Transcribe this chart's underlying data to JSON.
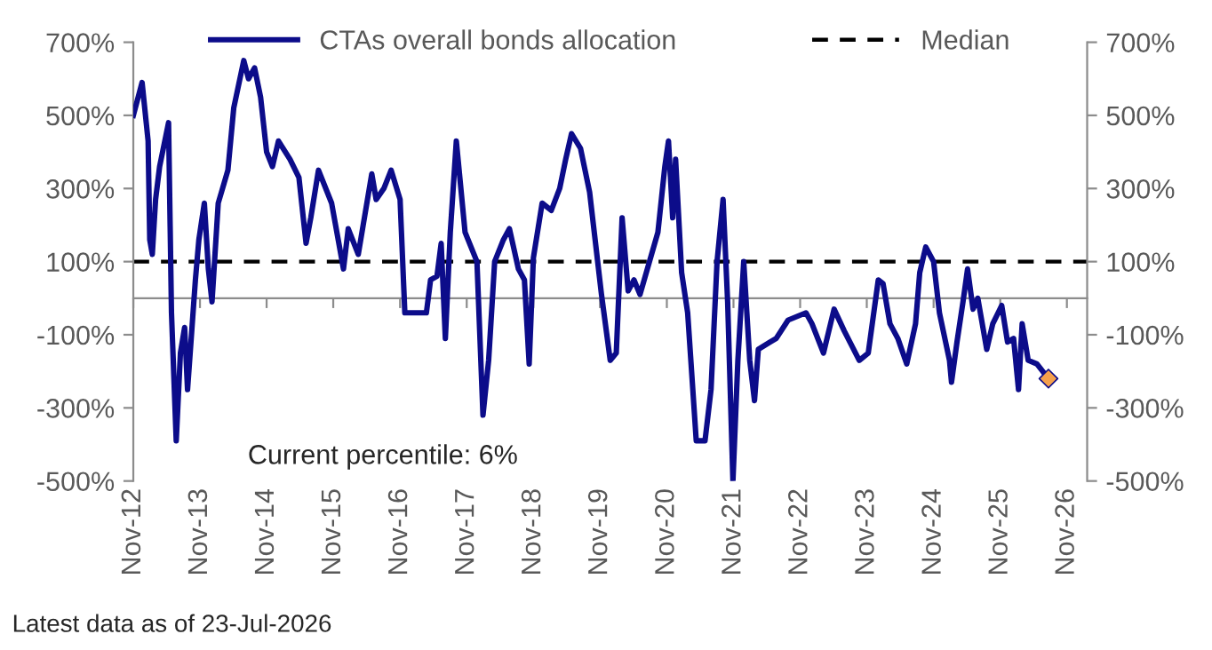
{
  "chart_data": {
    "type": "line",
    "x": [
      "2012-11-01",
      "2012-12-19",
      "2013-01-21",
      "2013-01-30",
      "2013-02-13",
      "2013-03-03",
      "2013-03-25",
      "2013-05-13",
      "2013-05-29",
      "2013-06-24",
      "2013-07-17",
      "2013-08-09",
      "2013-08-25",
      "2013-10-07",
      "2013-10-26",
      "2013-11-25",
      "2013-12-17",
      "2014-01-06",
      "2014-02-09",
      "2014-04-03",
      "2014-05-05",
      "2014-06-29",
      "2014-07-25",
      "2014-08-27",
      "2014-09-29",
      "2014-11-01",
      "2014-12-03",
      "2015-01-05",
      "2015-03-09",
      "2015-04-27",
      "2015-06-05",
      "2015-07-01",
      "2015-08-12",
      "2015-10-23",
      "2015-12-27",
      "2016-01-22",
      "2016-03-17",
      "2016-05-30",
      "2016-06-23",
      "2016-08-04",
      "2016-09-13",
      "2016-11-01",
      "2016-11-27",
      "2017-01-21",
      "2017-03-25",
      "2017-04-17",
      "2017-05-22",
      "2017-06-14",
      "2017-07-07",
      "2017-08-03",
      "2017-09-05",
      "2017-10-23",
      "2017-12-27",
      "2018-01-29",
      "2018-03-01",
      "2018-04-03",
      "2018-05-21",
      "2018-06-23",
      "2018-08-11",
      "2018-09-13",
      "2018-10-09",
      "2018-11-01",
      "2018-12-19",
      "2019-02-07",
      "2019-03-25",
      "2019-04-27",
      "2019-05-29",
      "2019-07-17",
      "2019-09-05",
      "2019-11-09",
      "2019-12-27",
      "2020-01-29",
      "2020-03-01",
      "2020-04-03",
      "2020-05-05",
      "2020-06-07",
      "2020-09-13",
      "2020-10-21",
      "2020-11-10",
      "2020-12-03",
      "2020-12-19",
      "2021-01-21",
      "2021-02-23",
      "2021-04-11",
      "2021-05-29",
      "2021-07-01",
      "2021-08-03",
      "2021-09-05",
      "2021-09-30",
      "2021-10-29",
      "2021-11-25",
      "2021-12-27",
      "2022-01-29",
      "2022-02-24",
      "2022-03-17",
      "2022-05-21",
      "2022-06-23",
      "2022-08-27",
      "2022-12-03",
      "2023-01-05",
      "2023-03-09",
      "2023-05-06",
      "2023-07-01",
      "2023-09-21",
      "2023-11-09",
      "2024-01-03",
      "2024-01-29",
      "2024-03-07",
      "2024-04-19",
      "2024-06-07",
      "2024-07-25",
      "2024-08-17",
      "2024-09-19",
      "2024-11-01",
      "2024-12-03",
      "2025-01-27",
      "2025-02-07",
      "2025-03-09",
      "2025-04-11",
      "2025-05-06",
      "2025-06-05",
      "2025-07-01",
      "2025-08-19",
      "2025-09-21",
      "2025-11-09",
      "2025-12-11",
      "2026-01-13",
      "2026-02-09",
      "2026-03-01",
      "2026-04-03",
      "2026-05-21",
      "2026-07-23"
    ],
    "series": [
      {
        "name": "CTAs overall bonds allocation",
        "color": "#0c0c8a",
        "marker": "none",
        "values": [
          500,
          590,
          430,
          160,
          120,
          270,
          360,
          480,
          -40,
          -390,
          -150,
          -80,
          -250,
          50,
          160,
          260,
          80,
          -10,
          260,
          350,
          520,
          650,
          600,
          630,
          550,
          400,
          360,
          430,
          380,
          330,
          150,
          220,
          350,
          260,
          80,
          190,
          120,
          340,
          270,
          300,
          350,
          270,
          -40,
          -40,
          -40,
          50,
          60,
          150,
          -110,
          180,
          430,
          180,
          100,
          -320,
          -170,
          100,
          160,
          190,
          80,
          50,
          -180,
          110,
          260,
          240,
          300,
          380,
          450,
          410,
          290,
          10,
          -170,
          -150,
          220,
          20,
          50,
          10,
          180,
          360,
          430,
          220,
          380,
          70,
          -40,
          -390,
          -390,
          -250,
          100,
          270,
          -10,
          -500,
          -170,
          100,
          -170,
          -280,
          -140,
          -120,
          -110,
          -60,
          -40,
          -70,
          -150,
          -30,
          -90,
          -170,
          -150,
          50,
          40,
          -70,
          -110,
          -180,
          -70,
          70,
          140,
          100,
          -40,
          -170,
          -230,
          -120,
          -10,
          80,
          -30,
          0,
          -140,
          -70,
          -20,
          -120,
          -110,
          -250,
          -70,
          -170,
          -180,
          -220
        ]
      },
      {
        "type": "scatter",
        "color": "#f4a04c",
        "marker": "diamond",
        "x": [
          "2026-07-23"
        ],
        "values": [
          -220
        ]
      }
    ],
    "xlim": [
      "2012-11-01",
      "2027-02-20"
    ],
    "xticks": [
      {
        "value": "2012-11-01",
        "label": "Nov-12"
      },
      {
        "value": "2013-11-01",
        "label": "Nov-13"
      },
      {
        "value": "2014-11-01",
        "label": "Nov-14"
      },
      {
        "value": "2015-11-01",
        "label": "Nov-15"
      },
      {
        "value": "2016-11-01",
        "label": "Nov-16"
      },
      {
        "value": "2017-11-01",
        "label": "Nov-17"
      },
      {
        "value": "2018-11-01",
        "label": "Nov-18"
      },
      {
        "value": "2019-11-01",
        "label": "Nov-19"
      },
      {
        "value": "2020-11-01",
        "label": "Nov-20"
      },
      {
        "value": "2021-11-01",
        "label": "Nov-21"
      },
      {
        "value": "2022-11-01",
        "label": "Nov-22"
      },
      {
        "value": "2023-11-01",
        "label": "Nov-23"
      },
      {
        "value": "2024-11-01",
        "label": "Nov-24"
      },
      {
        "value": "2025-11-01",
        "label": "Nov-25"
      },
      {
        "value": "2026-11-01",
        "label": "Nov-26"
      }
    ],
    "ylim": [
      -500,
      700
    ],
    "yticks": [
      {
        "value": -500,
        "label": "-500%"
      },
      {
        "value": -300,
        "label": "-300%"
      },
      {
        "value": -100,
        "label": "-100%"
      },
      {
        "value": 100,
        "label": "100%"
      },
      {
        "value": 300,
        "label": "300%"
      },
      {
        "value": 500,
        "label": "500%"
      },
      {
        "value": 700,
        "label": "700%"
      }
    ],
    "y2lim": [
      -500,
      700
    ],
    "y2ticks": [
      {
        "value": -500,
        "label": "-500%"
      },
      {
        "value": -300,
        "label": "-300%"
      },
      {
        "value": -100,
        "label": "-100%"
      },
      {
        "value": 100,
        "label": "100%"
      },
      {
        "value": 300,
        "label": "300%"
      },
      {
        "value": 500,
        "label": "500%"
      },
      {
        "value": 700,
        "label": "700%"
      }
    ],
    "ref_lines": [
      {
        "axis": "y",
        "value": 100,
        "label": "Median",
        "color": "#000000",
        "line_style": "dashed"
      }
    ],
    "annotations": [
      "Current percentile: 6%",
      "Latest data as of 23-Jul-2026"
    ],
    "legend": "top",
    "grid": false
  }
}
